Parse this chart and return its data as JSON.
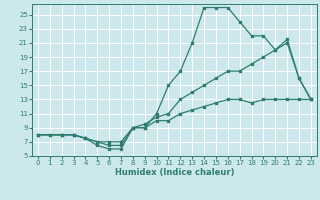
{
  "xlabel": "Humidex (Indice chaleur)",
  "bg_color": "#cce8ed",
  "grid_color": "#ffffff",
  "line_color": "#2e7d6e",
  "xlim": [
    -0.5,
    23.5
  ],
  "ylim": [
    5,
    26.5
  ],
  "xticks": [
    0,
    1,
    2,
    3,
    4,
    5,
    6,
    7,
    8,
    9,
    10,
    11,
    12,
    13,
    14,
    15,
    16,
    17,
    18,
    19,
    20,
    21,
    22,
    23
  ],
  "yticks": [
    5,
    7,
    9,
    11,
    13,
    15,
    17,
    19,
    21,
    23,
    25
  ],
  "series1_x": [
    0,
    1,
    2,
    3,
    4,
    5,
    6,
    7,
    8,
    9,
    10,
    11,
    12,
    13,
    14,
    15,
    16,
    17,
    18,
    19,
    20,
    21,
    22,
    23
  ],
  "series1_y": [
    8,
    8,
    8,
    8,
    7.5,
    7,
    6.5,
    6.5,
    9,
    9,
    10,
    10,
    11,
    11.5,
    12,
    12.5,
    13,
    13,
    12.5,
    13,
    13,
    13,
    13,
    13
  ],
  "series2_x": [
    0,
    2,
    3,
    4,
    5,
    6,
    7,
    8,
    9,
    10,
    11,
    12,
    13,
    14,
    15,
    16,
    17,
    18,
    19,
    20,
    21,
    22,
    23
  ],
  "series2_y": [
    8,
    8,
    8,
    7.5,
    7,
    7,
    7,
    9,
    9.5,
    10.5,
    11,
    13,
    14,
    15,
    16,
    17,
    17,
    18,
    19,
    20,
    21,
    16,
    13
  ],
  "series3_x": [
    0,
    1,
    2,
    3,
    4,
    5,
    6,
    7,
    8,
    9,
    10,
    11,
    12,
    13,
    14,
    15,
    16,
    17,
    18,
    19,
    20,
    21,
    22,
    23
  ],
  "series3_y": [
    8,
    8,
    8,
    8,
    7.5,
    6.5,
    6,
    6,
    9,
    9,
    11,
    15,
    17,
    21,
    26,
    26,
    26,
    24,
    22,
    22,
    20,
    21.5,
    16,
    13
  ]
}
